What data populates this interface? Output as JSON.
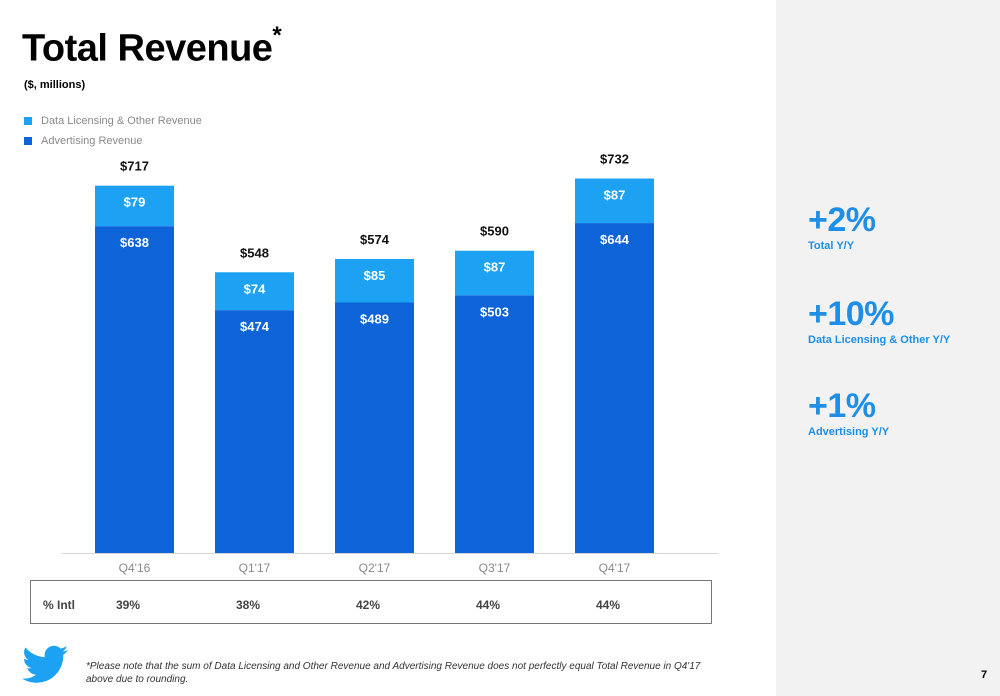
{
  "slide": {
    "title": "Total Revenue",
    "title_mark": "*",
    "subtitle": "($, millions)",
    "page_number": "7"
  },
  "legend": [
    {
      "label": "Data Licensing & Other Revenue",
      "color": "#1da1f2"
    },
    {
      "label": "Advertising Revenue",
      "color": "#0d63d8"
    }
  ],
  "chart_data": {
    "type": "bar",
    "stacked": true,
    "title": "Total Revenue",
    "ylabel": "$, millions",
    "categories": [
      "Q4'16",
      "Q1'17",
      "Q2'17",
      "Q3'17",
      "Q4'17"
    ],
    "series": [
      {
        "name": "Advertising Revenue",
        "values": [
          638,
          474,
          489,
          503,
          644
        ],
        "labels": [
          "$638",
          "$474",
          "$489",
          "$503",
          "$644"
        ],
        "color": "#0d63d8"
      },
      {
        "name": "Data Licensing & Other Revenue",
        "values": [
          79,
          74,
          85,
          87,
          87
        ],
        "labels": [
          "$79",
          "$74",
          "$85",
          "$87",
          "$87"
        ],
        "color": "#1da1f2"
      }
    ],
    "totals": [
      717,
      548,
      574,
      590,
      732
    ],
    "total_labels": [
      "$717",
      "$548",
      "$574",
      "$590",
      "$732"
    ],
    "ylim": [
      0,
      732
    ]
  },
  "intl": {
    "label": "% Intl",
    "values": [
      "39%",
      "38%",
      "42%",
      "44%",
      "44%"
    ]
  },
  "kpis": [
    {
      "value": "+2%",
      "label": "Total Y/Y"
    },
    {
      "value": "+10%",
      "label": "Data Licensing & Other Y/Y"
    },
    {
      "value": "+1%",
      "label": "Advertising Y/Y"
    }
  ],
  "footnote": "*Please note that the sum of Data Licensing and Other Revenue and Advertising Revenue does not perfectly equal Total Revenue in Q4'17 above due to rounding.",
  "colors": {
    "accent": "#1d8fe8",
    "twitter_blue": "#1da1f2",
    "panel_bg": "#f2f2f2"
  }
}
